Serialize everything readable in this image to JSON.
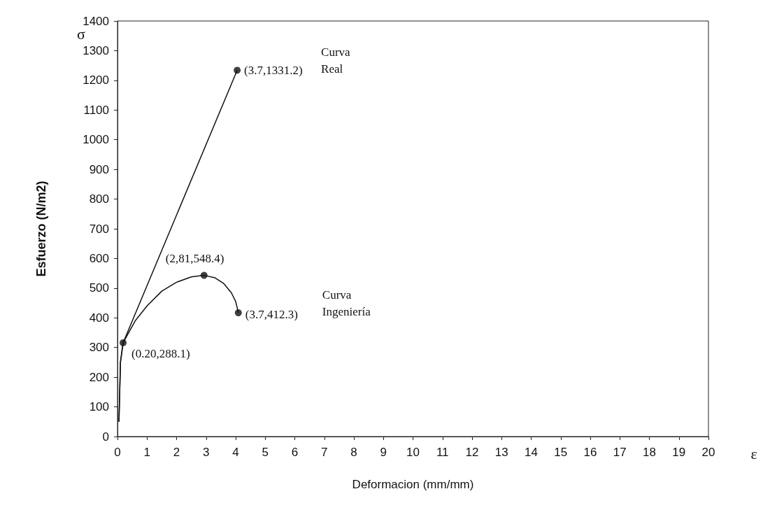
{
  "chart_data": {
    "type": "line",
    "xlabel": "Deformacion (mm/mm)",
    "ylabel": "Esfuerzo (N/m2)",
    "series": [
      {
        "name": "Curva Real",
        "color": "#111111",
        "x": [
          0.05,
          0.1,
          0.19,
          4.05
        ],
        "values": [
          50,
          250,
          316,
          1234
        ],
        "marker": "none"
      },
      {
        "name": "Curva Ingeniería",
        "color": "#111111",
        "x": [
          0.05,
          0.1,
          0.19,
          0.6,
          1.0,
          1.5,
          2.0,
          2.5,
          2.93,
          3.3,
          3.6,
          3.85,
          4.0,
          4.09
        ],
        "values": [
          50,
          250,
          316,
          390,
          440,
          490,
          520,
          538,
          543,
          535,
          515,
          485,
          455,
          417
        ],
        "marker": "none"
      },
      {
        "type": "scatter",
        "color": "#111111",
        "x": [
          0.19,
          2.93,
          4.05,
          4.09
        ],
        "values": [
          316,
          543,
          1234,
          417
        ],
        "marker": "circle"
      }
    ],
    "xlim": [
      0,
      20
    ],
    "xticks": [
      0,
      1,
      2,
      3,
      4,
      5,
      6,
      7,
      8,
      9,
      10,
      11,
      12,
      13,
      14,
      15,
      16,
      17,
      18,
      19,
      20
    ],
    "ylim": [
      0,
      1400
    ],
    "yticks": [
      0,
      100,
      200,
      300,
      400,
      500,
      600,
      700,
      800,
      900,
      1000,
      1100,
      1200,
      1300,
      1400
    ],
    "annotations": [
      {
        "text": "(3.7,1331.2)",
        "x": 4.05,
        "y": 1234
      },
      {
        "text": "(2,81,548.4)",
        "x": 2.93,
        "y": 543
      },
      {
        "text": "(3.7,412.3)",
        "x": 4.09,
        "y": 417
      },
      {
        "text": "(0.20,288.1)",
        "x": 0.19,
        "y": 316
      },
      "σ",
      "ε"
    ],
    "grid": false,
    "legend": false,
    "line_style": "solid"
  }
}
